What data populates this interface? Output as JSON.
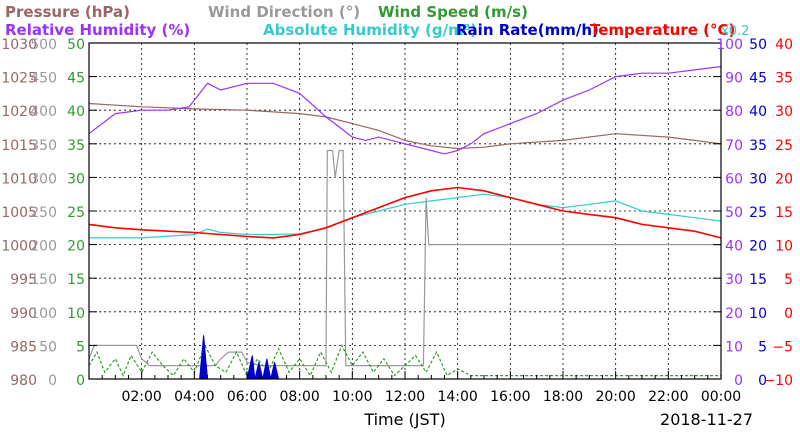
{
  "chart_data": {
    "type": "line",
    "title_rows": [
      [
        {
          "text": "Pressure (hPa)",
          "color": "#996666"
        },
        {
          "text": "Wind Direction (°)",
          "color": "#999999"
        },
        {
          "text": "Wind Speed (m/s)",
          "color": "#339933"
        }
      ],
      [
        {
          "text": "Relative Humidity (%)",
          "color": "#9933ff"
        },
        {
          "text": "Absolute Humidity (g/m³)",
          "color": "#33cccc"
        },
        {
          "text": "Rain Rate(mm/h)",
          "color": "#0000cc"
        },
        {
          "text": "Temperature (°C)",
          "color": "#ff0000"
        },
        {
          "text": "x0.2",
          "color": "#33cccc"
        }
      ]
    ],
    "xlabel": "Time (JST)",
    "date_label": "2018-11-27",
    "x_range_hours": [
      0,
      24
    ],
    "x_ticks": [
      {
        "h": 2,
        "label": "02:00"
      },
      {
        "h": 4,
        "label": "04:00"
      },
      {
        "h": 6,
        "label": "06:00"
      },
      {
        "h": 8,
        "label": "08:00"
      },
      {
        "h": 10,
        "label": "10:00"
      },
      {
        "h": 12,
        "label": "12:00"
      },
      {
        "h": 14,
        "label": "14:00"
      },
      {
        "h": 16,
        "label": "16:00"
      },
      {
        "h": 18,
        "label": "18:00"
      },
      {
        "h": 20,
        "label": "20:00"
      },
      {
        "h": 22,
        "label": "22:00"
      },
      {
        "h": 24,
        "label": "00:00"
      }
    ],
    "left_axes": [
      {
        "name": "Pressure",
        "color": "#996666",
        "labels": [
          "980",
          "985",
          "990",
          "995",
          "1000",
          "1005",
          "1010",
          "1015",
          "1020",
          "1025",
          "1030"
        ]
      },
      {
        "name": "Wind Direction",
        "color": "#999999",
        "labels": [
          "0",
          "50",
          "100",
          "150",
          "200",
          "250",
          "300",
          "350",
          "400",
          "450",
          "500"
        ]
      },
      {
        "name": "Wind Speed",
        "color": "#339933",
        "labels": [
          "0",
          "5",
          "10",
          "15",
          "20",
          "25",
          "30",
          "35",
          "40",
          "45",
          "50"
        ]
      }
    ],
    "right_axes": [
      {
        "name": "Relative Humidity",
        "color": "#9933ff",
        "labels": [
          "0",
          "10",
          "20",
          "30",
          "40",
          "50",
          "60",
          "70",
          "80",
          "90",
          "100"
        ]
      },
      {
        "name": "Rain Rate",
        "color": "#0000cc",
        "labels": [
          "0",
          "5",
          "10",
          "15",
          "20",
          "25",
          "30",
          "35",
          "40",
          "45",
          "50"
        ]
      },
      {
        "name": "Temperature",
        "color": "#ff0000",
        "labels": [
          "−10",
          "−5",
          "0",
          "5",
          "10",
          "15",
          "20",
          "25",
          "30",
          "35",
          "40"
        ]
      }
    ],
    "series": [
      {
        "name": "Pressure",
        "color": "#996666",
        "unit": "hPa",
        "range": [
          980,
          1030
        ],
        "points": [
          [
            0,
            1021
          ],
          [
            2,
            1020.5
          ],
          [
            4,
            1020.2
          ],
          [
            6,
            1020
          ],
          [
            8,
            1019.5
          ],
          [
            9,
            1019
          ],
          [
            10,
            1018
          ],
          [
            11,
            1017
          ],
          [
            12,
            1015.5
          ],
          [
            13,
            1014.7
          ],
          [
            14,
            1014.3
          ],
          [
            15,
            1014.5
          ],
          [
            16,
            1015
          ],
          [
            18,
            1015.5
          ],
          [
            20,
            1016.5
          ],
          [
            22,
            1016
          ],
          [
            23,
            1015.5
          ],
          [
            24,
            1015
          ]
        ]
      },
      {
        "name": "Relative Humidity",
        "color": "#9933ff",
        "unit": "%",
        "range": [
          0,
          100
        ],
        "points": [
          [
            0,
            73
          ],
          [
            0.5,
            76
          ],
          [
            1,
            79
          ],
          [
            2,
            80
          ],
          [
            3,
            80
          ],
          [
            3.8,
            81
          ],
          [
            4.2,
            85
          ],
          [
            4.5,
            88
          ],
          [
            5,
            86
          ],
          [
            6,
            88
          ],
          [
            7,
            88
          ],
          [
            8,
            85
          ],
          [
            9,
            78
          ],
          [
            9.5,
            75
          ],
          [
            10,
            72
          ],
          [
            10.5,
            71
          ],
          [
            11,
            72
          ],
          [
            12,
            70
          ],
          [
            13,
            68
          ],
          [
            13.5,
            67
          ],
          [
            14,
            68
          ],
          [
            14.5,
            70
          ],
          [
            15,
            73
          ],
          [
            16,
            76
          ],
          [
            17,
            79
          ],
          [
            18,
            83
          ],
          [
            19,
            86
          ],
          [
            20,
            90
          ],
          [
            21,
            91
          ],
          [
            22,
            91
          ],
          [
            23,
            92
          ],
          [
            24,
            93
          ]
        ]
      },
      {
        "name": "Absolute Humidity x0.2",
        "color": "#33cccc",
        "unit": "g/m³",
        "range": [
          0,
          50
        ],
        "points": [
          [
            0,
            21
          ],
          [
            2,
            21
          ],
          [
            4,
            21.5
          ],
          [
            4.5,
            22.3
          ],
          [
            5,
            21.8
          ],
          [
            6,
            21.5
          ],
          [
            7,
            21.5
          ],
          [
            8,
            21.6
          ],
          [
            9,
            22.5
          ],
          [
            10,
            24
          ],
          [
            11,
            25
          ],
          [
            12,
            26
          ],
          [
            13,
            26.5
          ],
          [
            14,
            27
          ],
          [
            15,
            27.5
          ],
          [
            16,
            27
          ],
          [
            17,
            26
          ],
          [
            18,
            25.5
          ],
          [
            19,
            26
          ],
          [
            20,
            26.5
          ],
          [
            21,
            25
          ],
          [
            22,
            24.5
          ],
          [
            23,
            24
          ],
          [
            24,
            23.5
          ]
        ]
      },
      {
        "name": "Temperature",
        "color": "#ff0000",
        "unit": "°C",
        "range": [
          -10,
          40
        ],
        "points": [
          [
            0,
            13
          ],
          [
            1,
            12.5
          ],
          [
            2,
            12.2
          ],
          [
            4,
            11.8
          ],
          [
            6,
            11.2
          ],
          [
            7,
            11
          ],
          [
            8,
            11.5
          ],
          [
            9,
            12.5
          ],
          [
            10,
            14
          ],
          [
            11,
            15.5
          ],
          [
            12,
            17
          ],
          [
            13,
            18
          ],
          [
            14,
            18.5
          ],
          [
            15,
            18
          ],
          [
            16,
            17
          ],
          [
            17,
            16
          ],
          [
            18,
            15
          ],
          [
            19,
            14.5
          ],
          [
            20,
            14
          ],
          [
            21,
            13
          ],
          [
            22,
            12.5
          ],
          [
            23,
            12
          ],
          [
            24,
            11
          ]
        ]
      },
      {
        "name": "Wind Direction",
        "color": "#999999",
        "unit": "°",
        "range": [
          0,
          500
        ],
        "points": [
          [
            0,
            30
          ],
          [
            0.2,
            50
          ],
          [
            1.8,
            50
          ],
          [
            2,
            30
          ],
          [
            2.3,
            20
          ],
          [
            4.8,
            20
          ],
          [
            5,
            30
          ],
          [
            5.3,
            40
          ],
          [
            5.8,
            40
          ],
          [
            6,
            25
          ],
          [
            6.5,
            20
          ],
          [
            9,
            20
          ],
          [
            9.05,
            340
          ],
          [
            9.25,
            340
          ],
          [
            9.35,
            300
          ],
          [
            9.5,
            340
          ],
          [
            9.65,
            340
          ],
          [
            9.75,
            20
          ],
          [
            12.7,
            20
          ],
          [
            12.8,
            270
          ],
          [
            12.9,
            200
          ],
          [
            13.0,
            200
          ],
          [
            24,
            200
          ]
        ]
      },
      {
        "name": "Wind Speed",
        "color": "#339933",
        "unit": "m/s",
        "range": [
          0,
          50
        ],
        "points": [
          [
            0,
            2
          ],
          [
            0.3,
            4
          ],
          [
            0.6,
            1
          ],
          [
            1,
            3
          ],
          [
            1.3,
            0.5
          ],
          [
            1.6,
            3.5
          ],
          [
            2,
            1
          ],
          [
            2.4,
            4
          ],
          [
            2.8,
            2
          ],
          [
            3.2,
            0.5
          ],
          [
            3.6,
            3
          ],
          [
            4,
            1
          ],
          [
            4.4,
            5
          ],
          [
            4.8,
            2
          ],
          [
            5.2,
            1
          ],
          [
            5.6,
            4
          ],
          [
            6,
            0.5
          ],
          [
            6.4,
            3
          ],
          [
            6.8,
            1
          ],
          [
            7.2,
            4.5
          ],
          [
            7.6,
            1
          ],
          [
            8,
            3
          ],
          [
            8.4,
            0.5
          ],
          [
            8.8,
            4
          ],
          [
            9.2,
            1
          ],
          [
            9.6,
            5
          ],
          [
            10,
            2
          ],
          [
            10.4,
            4
          ],
          [
            10.8,
            1
          ],
          [
            11.2,
            3
          ],
          [
            11.6,
            0.5
          ],
          [
            12,
            2
          ],
          [
            12.4,
            3.5
          ],
          [
            12.8,
            1
          ],
          [
            13.2,
            4
          ],
          [
            13.6,
            0.5
          ],
          [
            14,
            1.5
          ],
          [
            14.5,
            0.5
          ],
          [
            15,
            0.5
          ],
          [
            24,
            0.5
          ]
        ]
      },
      {
        "name": "Rain Rate",
        "color": "#0000cc",
        "unit": "mm/h",
        "range": [
          0,
          50
        ],
        "points": [
          [
            0,
            0
          ],
          [
            4.2,
            0
          ],
          [
            4.35,
            6.5
          ],
          [
            4.5,
            0
          ],
          [
            6,
            0
          ],
          [
            6.2,
            3.5
          ],
          [
            6.3,
            0
          ],
          [
            6.45,
            2.5
          ],
          [
            6.6,
            0
          ],
          [
            6.75,
            3
          ],
          [
            6.9,
            0
          ],
          [
            7.05,
            2.5
          ],
          [
            7.2,
            0
          ],
          [
            24,
            0
          ]
        ]
      }
    ]
  }
}
